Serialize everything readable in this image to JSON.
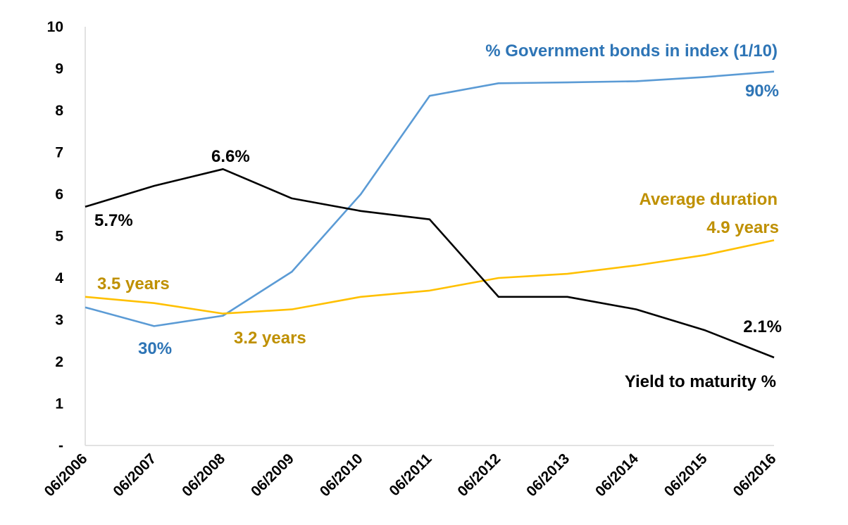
{
  "chart_data": {
    "type": "line",
    "categories": [
      "06/2006",
      "06/2007",
      "06/2008",
      "06/2009",
      "06/2010",
      "06/2011",
      "06/2012",
      "06/2013",
      "06/2014",
      "06/2015",
      "06/2016"
    ],
    "ylim": [
      0,
      10
    ],
    "yticks": [
      "-",
      "1",
      "2",
      "3",
      "4",
      "5",
      "6",
      "7",
      "8",
      "9",
      "10"
    ],
    "grid": false,
    "series": [
      {
        "name": "% Government bonds in index (1/10)",
        "color": "#5b9bd5",
        "label_color": "#2e75b6",
        "values": [
          3.3,
          2.85,
          3.1,
          4.15,
          6.0,
          8.35,
          8.65,
          8.67,
          8.7,
          8.8,
          8.93
        ]
      },
      {
        "name": "Average duration",
        "color": "#ffc000",
        "label_color": "#bf9000",
        "values": [
          3.55,
          3.4,
          3.15,
          3.25,
          3.55,
          3.7,
          4.0,
          4.1,
          4.3,
          4.55,
          4.9
        ]
      },
      {
        "name": "Yield to maturity %",
        "color": "#000000",
        "label_color": "#000000",
        "values": [
          5.7,
          6.2,
          6.6,
          5.9,
          5.6,
          5.4,
          3.55,
          3.55,
          3.25,
          2.75,
          2.1
        ]
      }
    ],
    "annotations": [
      {
        "text": "5.7%",
        "color": "#000000"
      },
      {
        "text": "6.6%",
        "color": "#000000"
      },
      {
        "text": "2.1%",
        "color": "#000000"
      },
      {
        "text": "30%",
        "color": "#2e75b6"
      },
      {
        "text": "90%",
        "color": "#2e75b6"
      },
      {
        "text": "3.5 years",
        "color": "#bf9000"
      },
      {
        "text": "3.2 years",
        "color": "#bf9000"
      },
      {
        "text": "4.9 years",
        "color": "#bf9000"
      }
    ]
  }
}
